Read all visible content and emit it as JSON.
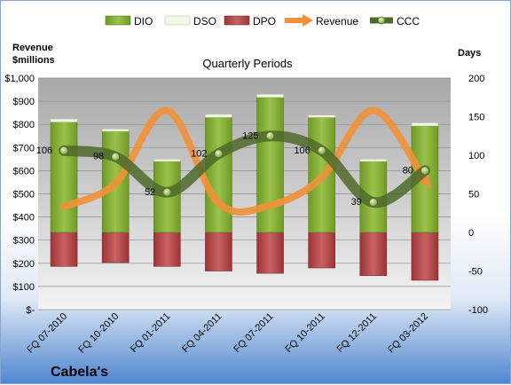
{
  "chart_data": {
    "type": "bar",
    "title": "Quarterly Periods",
    "company": "Cabela's",
    "left_axis": {
      "label_line1": "Revenue",
      "label_line2": "$millions",
      "min": 0,
      "max": 1000,
      "step": 100,
      "tick_labels": [
        "$-",
        "$100",
        "$200",
        "$300",
        "$400",
        "$500",
        "$600",
        "$700",
        "$800",
        "$900",
        "$1,000"
      ]
    },
    "right_axis": {
      "label": "Days",
      "min": -100,
      "max": 200,
      "step": 50,
      "tick_labels": [
        "-100",
        "-50",
        "0",
        "50",
        "100",
        "150",
        "200"
      ]
    },
    "categories": [
      "FQ 07-2010",
      "FQ 10-2010",
      "FQ 01-2011",
      "FQ 04-2011",
      "FQ 07-2011",
      "FQ 10-2011",
      "FQ 12-2011",
      "FQ 03-2012"
    ],
    "legend_position": "top",
    "grid": true,
    "series": [
      {
        "name": "DIO",
        "axis": "right",
        "kind": "stacked-bar",
        "color": "#7fa62e",
        "values": [
          143,
          131,
          92,
          149,
          175,
          149,
          92,
          138
        ]
      },
      {
        "name": "DSO",
        "axis": "right",
        "kind": "stacked-bar",
        "color": "#f4f8e6",
        "values": [
          4,
          3,
          3,
          4,
          4,
          3,
          3,
          4
        ]
      },
      {
        "name": "DPO",
        "axis": "right",
        "kind": "negative-bar",
        "color": "#b84a4c",
        "values": [
          -44,
          -39,
          -44,
          -50,
          -53,
          -46,
          -56,
          -62
        ]
      },
      {
        "name": "Revenue",
        "axis": "left",
        "kind": "line",
        "color": "#f0913a",
        "values": [
          445,
          545,
          860,
          460,
          450,
          570,
          860,
          560
        ]
      },
      {
        "name": "CCC",
        "axis": "right",
        "kind": "line",
        "color": "#4f6a2a",
        "values": [
          106,
          98,
          52,
          102,
          125,
          106,
          39,
          80
        ]
      }
    ],
    "data_labels": [
      "106",
      "98",
      "52",
      "102",
      "125",
      "106",
      "39",
      "80"
    ]
  }
}
